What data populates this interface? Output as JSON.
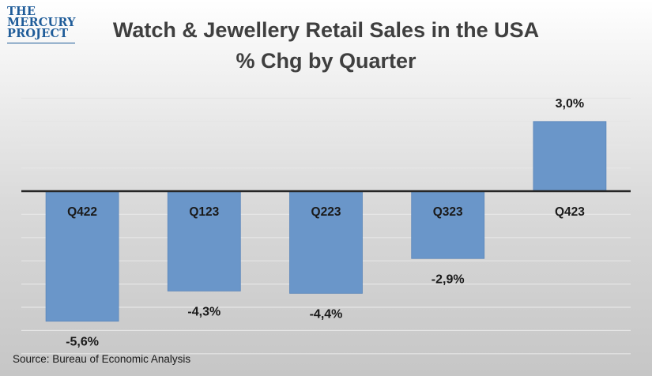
{
  "logo": {
    "line1": "THE",
    "line2": "MERCURY",
    "line3": "PROJECT"
  },
  "title": "Watch & Jewellery Retail Sales in the USA",
  "subtitle": "% Chg by Quarter",
  "source": "Source: Bureau of Economic Analysis",
  "colors": {
    "bar": "#6a96c9",
    "bar_edge": "#5a86bb",
    "zero_line": "#262626",
    "grid": "#e6e6e6",
    "text": "#1a1a1a"
  },
  "chart_data": {
    "type": "bar",
    "title": "Watch & Jewellery Retail Sales in the USA",
    "subtitle": "% Chg by Quarter",
    "xlabel": "",
    "ylabel": "",
    "categories": [
      "Q422",
      "Q123",
      "Q223",
      "Q323",
      "Q423"
    ],
    "values": [
      -5.6,
      -4.3,
      -4.4,
      -2.9,
      3.0
    ],
    "data_labels": [
      "-5,6%",
      "-4,3%",
      "-4,4%",
      "-2,9%",
      "3,0%"
    ],
    "ylim": [
      -7.0,
      4.0
    ],
    "grid": true,
    "legend": "none"
  }
}
